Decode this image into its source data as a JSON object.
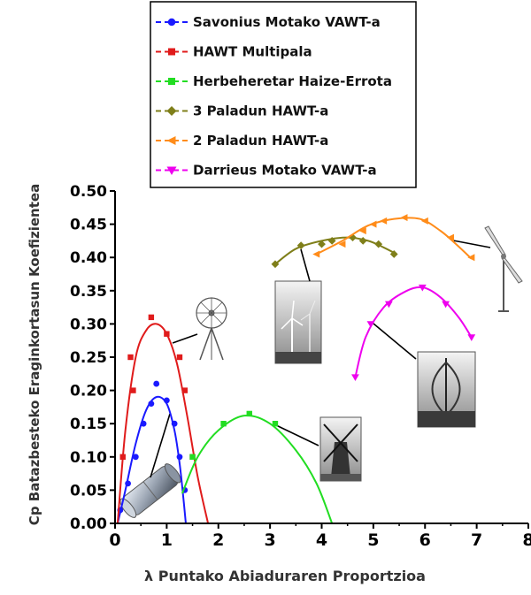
{
  "chart_data": {
    "type": "line",
    "xlabel": "λ Puntako Abiaduraren Proportzioa",
    "ylabel": "Cp Batazbesteko Eraginkortasun Koefizientea",
    "xlim": [
      0,
      8
    ],
    "ylim": [
      0,
      0.5
    ],
    "x_ticks": [
      "0",
      "1",
      "2",
      "3",
      "4",
      "5",
      "6",
      "7",
      "8"
    ],
    "y_ticks": [
      "0.00",
      "0.05",
      "0.10",
      "0.15",
      "0.20",
      "0.25",
      "0.30",
      "0.35",
      "0.40",
      "0.45",
      "0.50"
    ],
    "legend_position": "top-center",
    "series": [
      {
        "name": "Savonius Motako VAWT-a",
        "color": "#1a1aff",
        "marker": "circle",
        "points": [
          [
            0.1,
            0.02
          ],
          [
            0.25,
            0.06
          ],
          [
            0.4,
            0.1
          ],
          [
            0.55,
            0.15
          ],
          [
            0.7,
            0.18
          ],
          [
            0.8,
            0.21
          ],
          [
            1.0,
            0.185
          ],
          [
            1.15,
            0.15
          ],
          [
            1.25,
            0.1
          ],
          [
            1.35,
            0.05
          ]
        ],
        "curve": [
          [
            0.05,
            0.0
          ],
          [
            0.2,
            0.05
          ],
          [
            0.4,
            0.12
          ],
          [
            0.6,
            0.17
          ],
          [
            0.8,
            0.19
          ],
          [
            1.0,
            0.18
          ],
          [
            1.15,
            0.14
          ],
          [
            1.25,
            0.09
          ],
          [
            1.32,
            0.04
          ],
          [
            1.37,
            0.0
          ]
        ]
      },
      {
        "name": "HAWT Multipala",
        "color": "#e01b1b",
        "marker": "square",
        "points": [
          [
            0.15,
            0.1
          ],
          [
            0.3,
            0.25
          ],
          [
            0.35,
            0.2
          ],
          [
            0.7,
            0.31
          ],
          [
            1.0,
            0.285
          ],
          [
            1.25,
            0.25
          ],
          [
            1.35,
            0.2
          ],
          [
            1.5,
            0.1
          ]
        ],
        "curve": [
          [
            0.05,
            0.0
          ],
          [
            0.2,
            0.14
          ],
          [
            0.4,
            0.25
          ],
          [
            0.6,
            0.29
          ],
          [
            0.8,
            0.3
          ],
          [
            1.0,
            0.285
          ],
          [
            1.2,
            0.24
          ],
          [
            1.4,
            0.16
          ],
          [
            1.6,
            0.07
          ],
          [
            1.8,
            0.0
          ]
        ]
      },
      {
        "name": "Herbeheretar Haize-Errota",
        "color": "#22dd22",
        "marker": "square",
        "points": [
          [
            1.5,
            0.1
          ],
          [
            2.1,
            0.15
          ],
          [
            2.6,
            0.165
          ],
          [
            3.1,
            0.15
          ]
        ],
        "curve": [
          [
            1.3,
            0.045
          ],
          [
            1.6,
            0.1
          ],
          [
            2.0,
            0.14
          ],
          [
            2.5,
            0.162
          ],
          [
            3.0,
            0.15
          ],
          [
            3.5,
            0.11
          ],
          [
            3.9,
            0.06
          ],
          [
            4.2,
            0.0
          ]
        ]
      },
      {
        "name": "3 Paladun HAWT-a",
        "color": "#7f7f1a",
        "marker": "diamond",
        "points": [
          [
            3.1,
            0.39
          ],
          [
            3.6,
            0.418
          ],
          [
            4.0,
            0.42
          ],
          [
            4.2,
            0.425
          ],
          [
            4.6,
            0.43
          ],
          [
            4.8,
            0.425
          ],
          [
            5.1,
            0.42
          ],
          [
            5.4,
            0.405
          ]
        ],
        "curve": [
          [
            3.1,
            0.39
          ],
          [
            3.5,
            0.413
          ],
          [
            4.0,
            0.425
          ],
          [
            4.5,
            0.43
          ],
          [
            4.9,
            0.425
          ],
          [
            5.2,
            0.415
          ],
          [
            5.45,
            0.405
          ]
        ]
      },
      {
        "name": "2 Paladun HAWT-a",
        "color": "#ff8c1a",
        "marker": "triangle-left",
        "points": [
          [
            3.9,
            0.405
          ],
          [
            4.4,
            0.42
          ],
          [
            4.8,
            0.44
          ],
          [
            5.0,
            0.45
          ],
          [
            5.2,
            0.455
          ],
          [
            5.6,
            0.46
          ],
          [
            6.0,
            0.455
          ],
          [
            6.5,
            0.43
          ],
          [
            6.9,
            0.4
          ]
        ],
        "curve": [
          [
            3.9,
            0.405
          ],
          [
            4.4,
            0.425
          ],
          [
            4.9,
            0.448
          ],
          [
            5.4,
            0.458
          ],
          [
            5.9,
            0.458
          ],
          [
            6.3,
            0.44
          ],
          [
            6.6,
            0.42
          ],
          [
            6.9,
            0.398
          ]
        ]
      },
      {
        "name": "Darrieus Motako VAWT-a",
        "color": "#ee00ee",
        "marker": "triangle-down",
        "points": [
          [
            4.65,
            0.22
          ],
          [
            4.95,
            0.3
          ],
          [
            5.3,
            0.33
          ],
          [
            5.95,
            0.355
          ],
          [
            6.4,
            0.33
          ],
          [
            6.9,
            0.28
          ]
        ],
        "curve": [
          [
            4.65,
            0.22
          ],
          [
            4.85,
            0.28
          ],
          [
            5.2,
            0.325
          ],
          [
            5.6,
            0.348
          ],
          [
            5.95,
            0.355
          ],
          [
            6.3,
            0.34
          ],
          [
            6.65,
            0.31
          ],
          [
            6.9,
            0.28
          ]
        ]
      }
    ]
  }
}
